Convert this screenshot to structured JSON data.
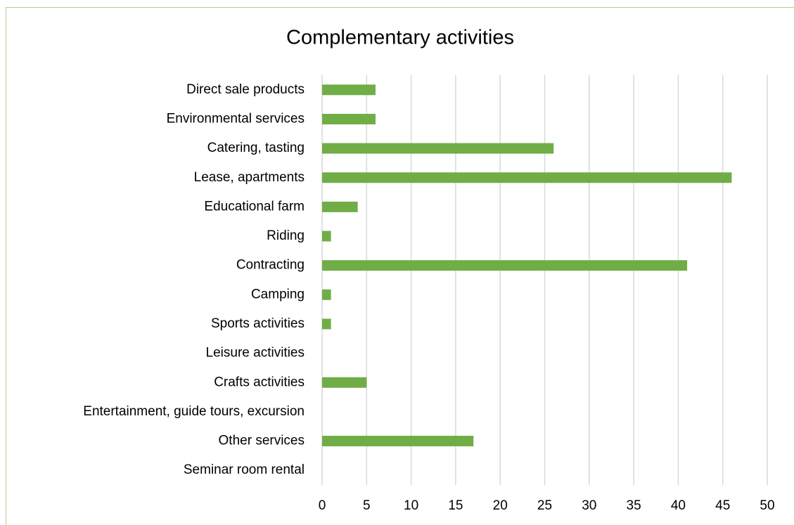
{
  "chart_data": {
    "type": "bar",
    "orientation": "horizontal",
    "title": "Complementary activities",
    "categories": [
      "Direct sale products",
      "Environmental services",
      "Catering, tasting",
      "Lease, apartments",
      "Educational farm",
      "Riding",
      "Contracting",
      "Camping",
      "Sports activities",
      "Leisure activities",
      "Crafts activities",
      "Entertainment, guide tours, excursion",
      "Other services",
      "Seminar room rental"
    ],
    "values": [
      6,
      6,
      26,
      46,
      4,
      1,
      41,
      1,
      1,
      0,
      5,
      0,
      17,
      0
    ],
    "color": "#70ad47",
    "xlim": [
      0,
      50
    ],
    "xticks": [
      0,
      5,
      10,
      15,
      20,
      25,
      30,
      35,
      40,
      45,
      50
    ],
    "grid": true
  }
}
